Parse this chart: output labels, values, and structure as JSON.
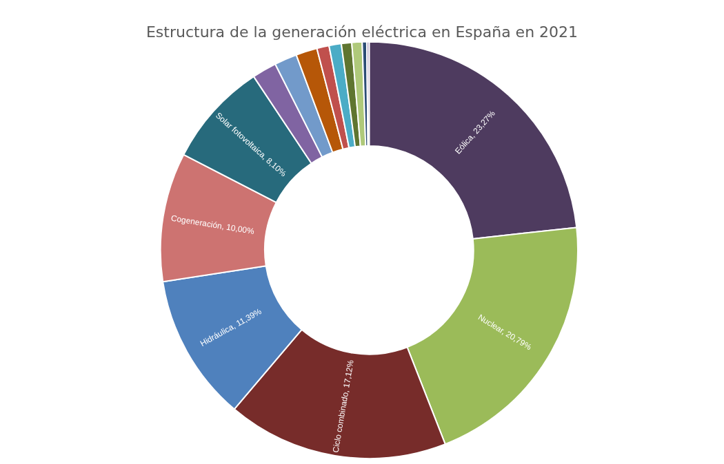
{
  "chart_data": {
    "type": "donut",
    "title": "Estructura de la generación eléctrica en España en 2021",
    "categories": [
      "Eólica",
      "Nuclear",
      "Ciclo combinado",
      "Hidráulica",
      "Cogeneración",
      "Solar fotovoltaica",
      null,
      null,
      null,
      null,
      null,
      null,
      null,
      null,
      null
    ],
    "values": [
      23.27,
      20.79,
      17.12,
      11.39,
      10.0,
      8.1,
      1.9,
      1.75,
      1.65,
      0.95,
      0.95,
      0.8,
      0.8,
      0.35,
      0.18
    ],
    "value_labels": [
      "23,27%",
      "20,79%",
      "17,12%",
      "11,39%",
      "10,00%",
      "8,10%",
      null,
      null,
      null,
      null,
      null,
      null,
      null,
      null,
      null
    ],
    "colors": [
      "#4e3b5f",
      "#9bbb59",
      "#772c2a",
      "#4f81bd",
      "#cd7371",
      "#276a7c",
      "#8064a2",
      "#729aca",
      "#b65708",
      "#c0504d",
      "#4bacc6",
      "#5f7530",
      "#afc97a",
      "#2c4d75",
      "#a99bbd"
    ],
    "legend": false
  }
}
